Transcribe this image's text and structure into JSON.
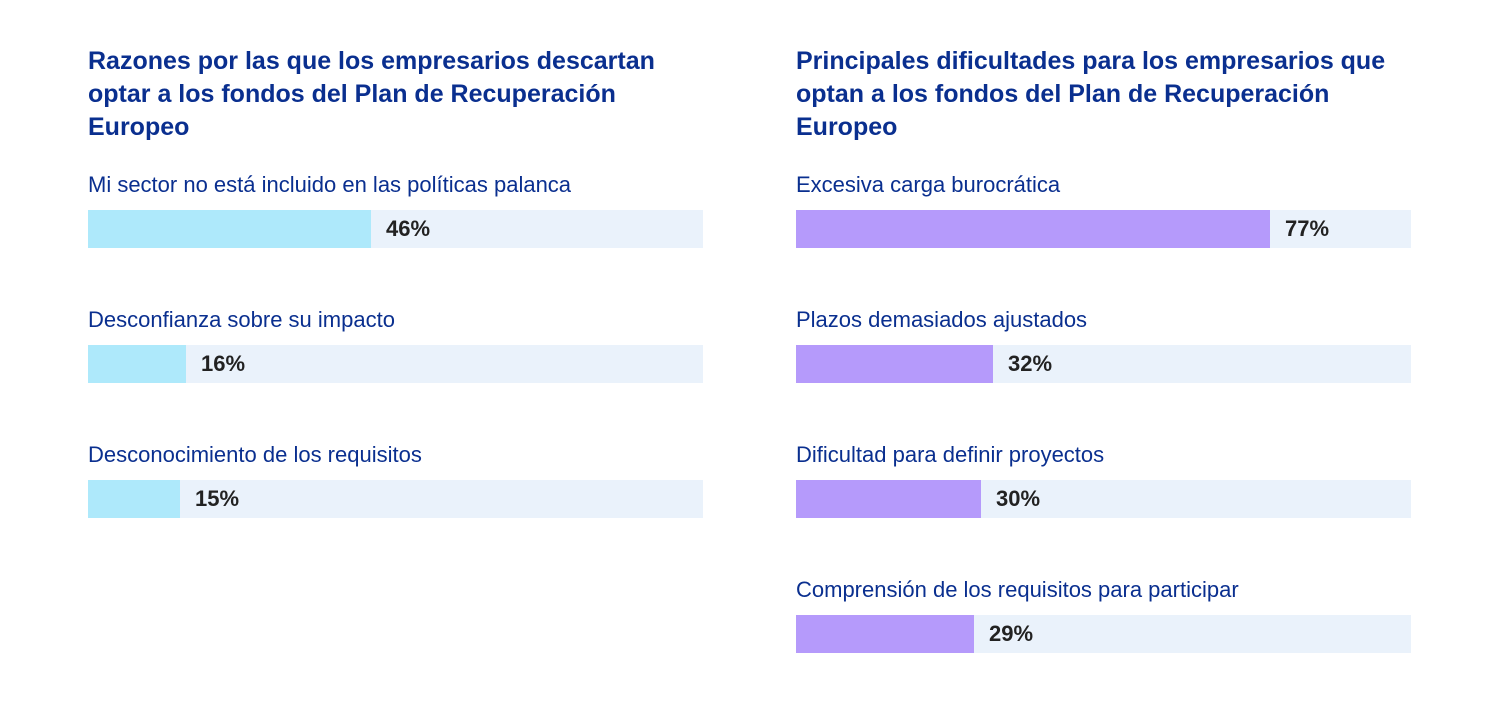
{
  "chart_data": [
    {
      "type": "bar",
      "orientation": "horizontal",
      "title": "Razones por las que los empresarios descartan optar a los fondos del Plan de Recuperación Europeo",
      "categories": [
        "Mi sector no está incluido en las políticas palanca",
        "Desconfianza sobre su impacto",
        "Desconocimiento de los requisitos"
      ],
      "values": [
        46,
        16,
        15
      ],
      "value_labels": [
        "46%",
        "16%",
        "15%"
      ],
      "xlim": [
        0,
        100
      ],
      "bar_color": "#aee9fb",
      "track_color": "#eaf2fb",
      "grid": false
    },
    {
      "type": "bar",
      "orientation": "horizontal",
      "title": "Principales dificultades para los empresarios que optan a los fondos del Plan de Recuperación Europeo",
      "categories": [
        "Excesiva carga burocrática",
        "Plazos demasiados ajustados",
        "Dificultad para definir proyectos",
        "Comprensión de los requisitos para participar"
      ],
      "values": [
        77,
        32,
        30,
        29
      ],
      "value_labels": [
        "77%",
        "32%",
        "30%",
        "29%"
      ],
      "xlim": [
        0,
        100
      ],
      "bar_color": "#b59afb",
      "track_color": "#eaf2fb",
      "grid": false
    }
  ]
}
